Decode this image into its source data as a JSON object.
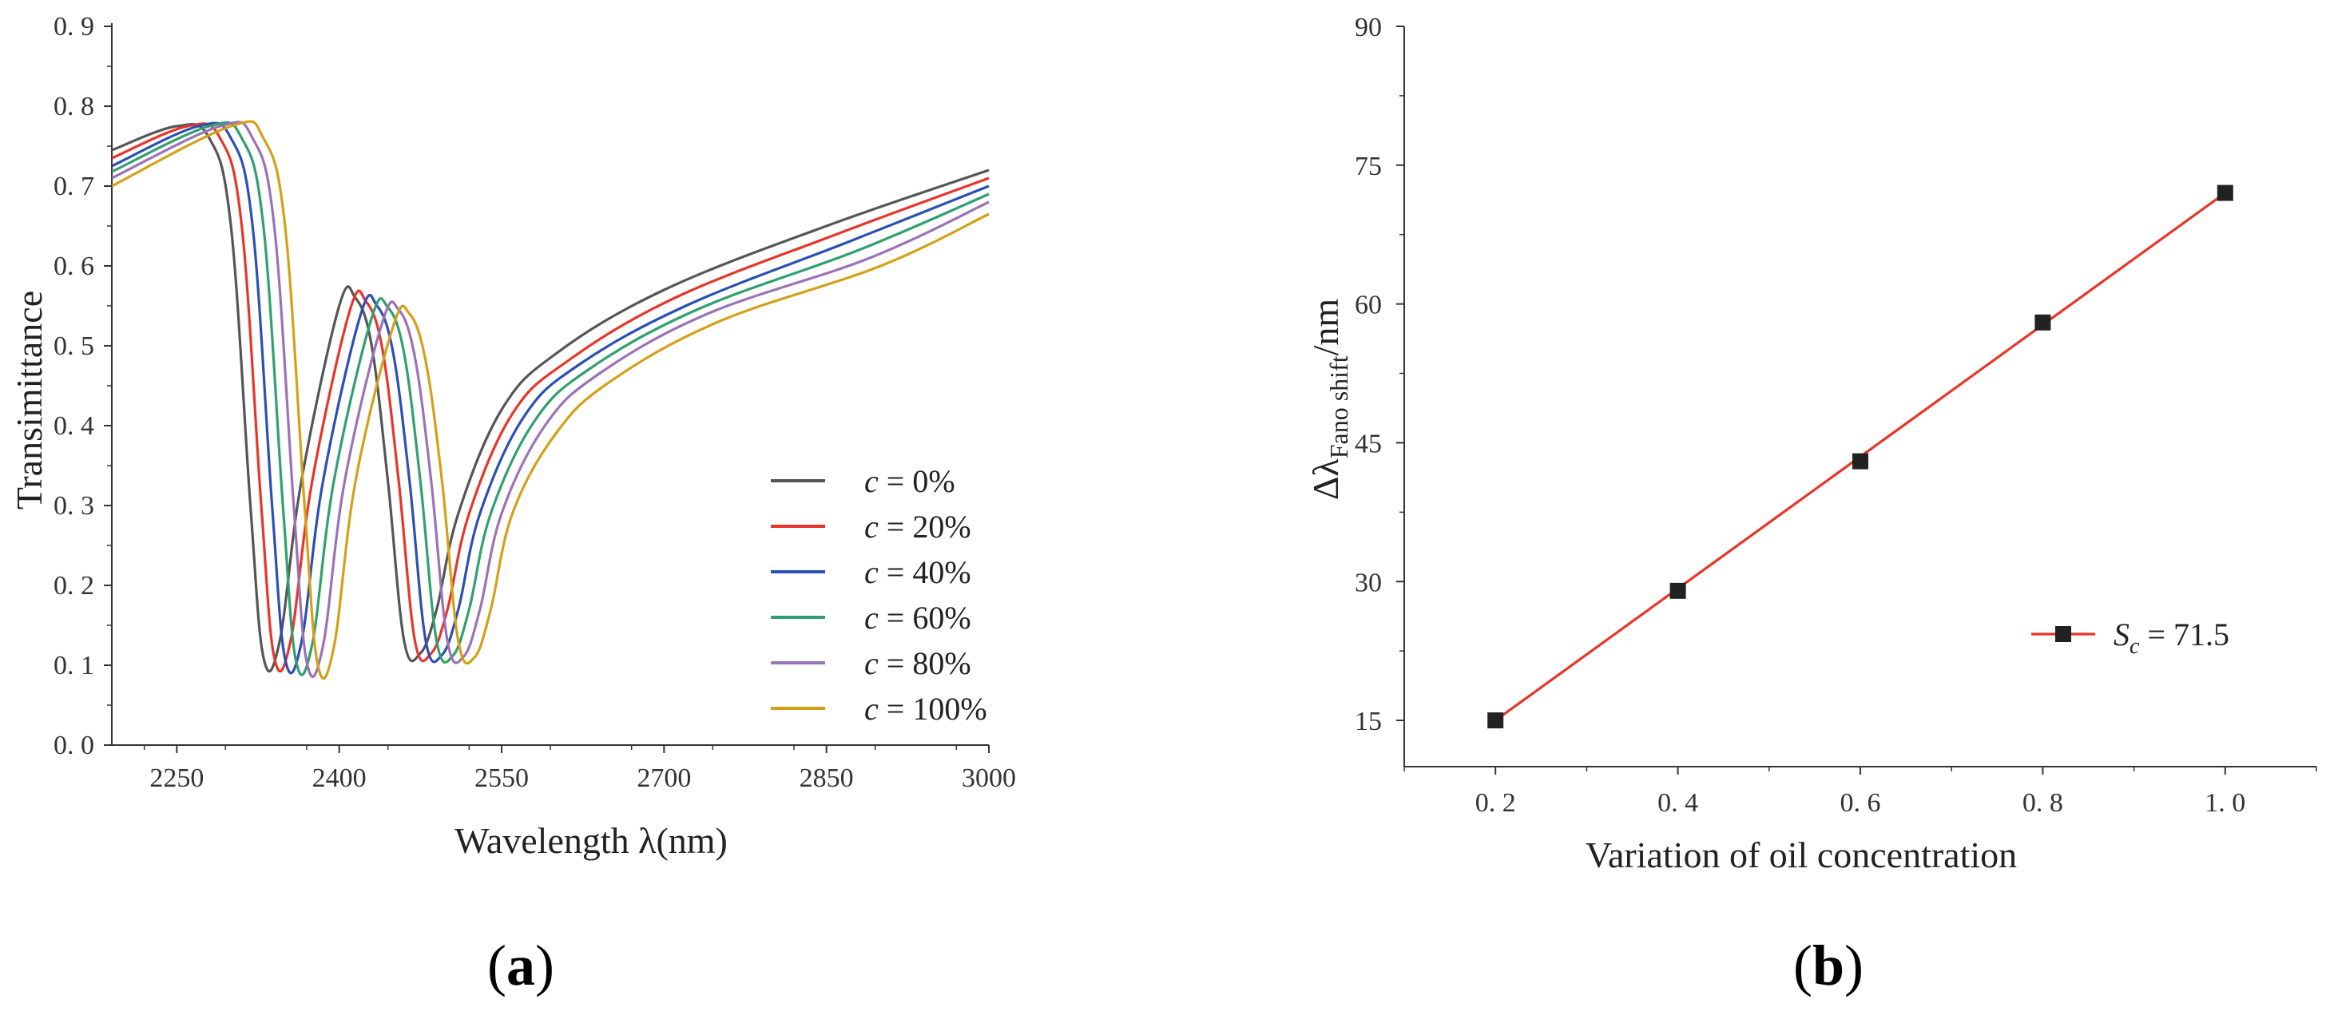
{
  "chart_data": [
    {
      "id": "a",
      "type": "line",
      "panel_label": "a",
      "xlabel": "Wavelength λ(nm)",
      "ylabel": "Transimittance",
      "xlim": [
        2190,
        3000
      ],
      "ylim": [
        0,
        0.9
      ],
      "xticks": [
        2250,
        2400,
        2550,
        2700,
        2850,
        3000
      ],
      "yticks": [
        0.0,
        0.1,
        0.2,
        0.3,
        0.4,
        0.5,
        0.6,
        0.7,
        0.8,
        0.9
      ],
      "ytick_labels": [
        "0. 0",
        "0. 1",
        "0. 2",
        "0. 3",
        "0. 4",
        "0. 5",
        "0. 6",
        "0. 7",
        "0. 8",
        "0. 9"
      ],
      "legend_position": "bottom-right",
      "series": [
        {
          "name": "c = 0%",
          "var": "c",
          "value_label": " = 0%",
          "color": "#555555",
          "x": [
            2190,
            2250,
            2280,
            2300,
            2318,
            2330,
            2345,
            2365,
            2400,
            2415,
            2430,
            2445,
            2460,
            2475,
            2490,
            2510,
            2550,
            2600,
            2700,
            2850,
            3000
          ],
          "y": [
            0.745,
            0.775,
            0.76,
            0.65,
            0.3,
            0.11,
            0.13,
            0.33,
            0.55,
            0.56,
            0.5,
            0.33,
            0.13,
            0.115,
            0.17,
            0.29,
            0.42,
            0.49,
            0.57,
            0.65,
            0.72
          ]
        },
        {
          "name": "c = 20%",
          "var": "c",
          "value_label": " = 20%",
          "color": "#e8352a",
          "x": [
            2190,
            2260,
            2290,
            2310,
            2328,
            2340,
            2355,
            2375,
            2410,
            2425,
            2440,
            2455,
            2470,
            2485,
            2500,
            2520,
            2560,
            2610,
            2710,
            2860,
            3000
          ],
          "y": [
            0.735,
            0.775,
            0.76,
            0.65,
            0.3,
            0.11,
            0.13,
            0.33,
            0.545,
            0.555,
            0.495,
            0.33,
            0.13,
            0.115,
            0.17,
            0.29,
            0.415,
            0.48,
            0.56,
            0.64,
            0.71
          ]
        },
        {
          "name": "c = 40%",
          "var": "c",
          "value_label": " = 40%",
          "color": "#2b4fb5",
          "x": [
            2190,
            2270,
            2300,
            2320,
            2338,
            2350,
            2365,
            2385,
            2420,
            2435,
            2450,
            2465,
            2480,
            2495,
            2510,
            2530,
            2570,
            2620,
            2720,
            2870,
            3000
          ],
          "y": [
            0.725,
            0.775,
            0.76,
            0.65,
            0.3,
            0.108,
            0.128,
            0.33,
            0.54,
            0.55,
            0.49,
            0.33,
            0.13,
            0.113,
            0.17,
            0.29,
            0.41,
            0.475,
            0.55,
            0.63,
            0.7
          ]
        },
        {
          "name": "c = 60%",
          "var": "c",
          "value_label": " = 60%",
          "color": "#2fa06e",
          "x": [
            2190,
            2280,
            2310,
            2330,
            2348,
            2360,
            2375,
            2395,
            2430,
            2445,
            2460,
            2475,
            2490,
            2505,
            2520,
            2540,
            2580,
            2630,
            2730,
            2880,
            3000
          ],
          "y": [
            0.718,
            0.775,
            0.76,
            0.65,
            0.3,
            0.106,
            0.126,
            0.33,
            0.535,
            0.548,
            0.49,
            0.33,
            0.13,
            0.112,
            0.17,
            0.29,
            0.405,
            0.47,
            0.545,
            0.62,
            0.69
          ]
        },
        {
          "name": "c = 80%",
          "var": "c",
          "value_label": " = 80%",
          "color": "#9b72b8",
          "x": [
            2190,
            2290,
            2320,
            2340,
            2358,
            2370,
            2385,
            2405,
            2440,
            2455,
            2470,
            2485,
            2500,
            2515,
            2530,
            2550,
            2590,
            2640,
            2740,
            2890,
            3000
          ],
          "y": [
            0.71,
            0.775,
            0.76,
            0.65,
            0.3,
            0.104,
            0.124,
            0.33,
            0.53,
            0.545,
            0.485,
            0.33,
            0.13,
            0.111,
            0.17,
            0.29,
            0.4,
            0.465,
            0.54,
            0.61,
            0.68
          ]
        },
        {
          "name": "c = 100%",
          "var": "c",
          "value_label": " = 100%",
          "color": "#d4a017",
          "x": [
            2190,
            2300,
            2330,
            2350,
            2368,
            2380,
            2395,
            2415,
            2450,
            2465,
            2480,
            2495,
            2510,
            2525,
            2540,
            2560,
            2600,
            2650,
            2750,
            2900,
            3000
          ],
          "y": [
            0.7,
            0.775,
            0.76,
            0.65,
            0.3,
            0.102,
            0.122,
            0.33,
            0.525,
            0.54,
            0.48,
            0.33,
            0.13,
            0.11,
            0.17,
            0.29,
            0.39,
            0.455,
            0.53,
            0.6,
            0.665
          ]
        }
      ]
    },
    {
      "id": "b",
      "type": "scatter",
      "panel_label": "b",
      "xlabel": "Variation of oil concentration",
      "ylabel_main": "Δλ",
      "ylabel_sub": "Fano shift",
      "ylabel_tail": "/nm",
      "xlim": [
        0.1,
        1.1
      ],
      "ylim": [
        10,
        90
      ],
      "xticks": [
        0.2,
        0.4,
        0.6,
        0.8,
        1.0
      ],
      "xtick_labels": [
        "0. 2",
        "0. 4",
        "0. 6",
        "0. 8",
        "1. 0"
      ],
      "yticks": [
        15,
        30,
        45,
        60,
        75,
        90
      ],
      "legend_position": "right",
      "legend": {
        "symbol": "S",
        "subscript": "c",
        "value_text": " = 71.5"
      },
      "marker_color": "#222222",
      "fit_color": "#e8352a",
      "points": {
        "x": [
          0.2,
          0.4,
          0.6,
          0.8,
          1.0
        ],
        "y": [
          15,
          29,
          43,
          58,
          72
        ]
      },
      "fit": {
        "slope": 71.5,
        "intercept": 0.7
      }
    }
  ]
}
